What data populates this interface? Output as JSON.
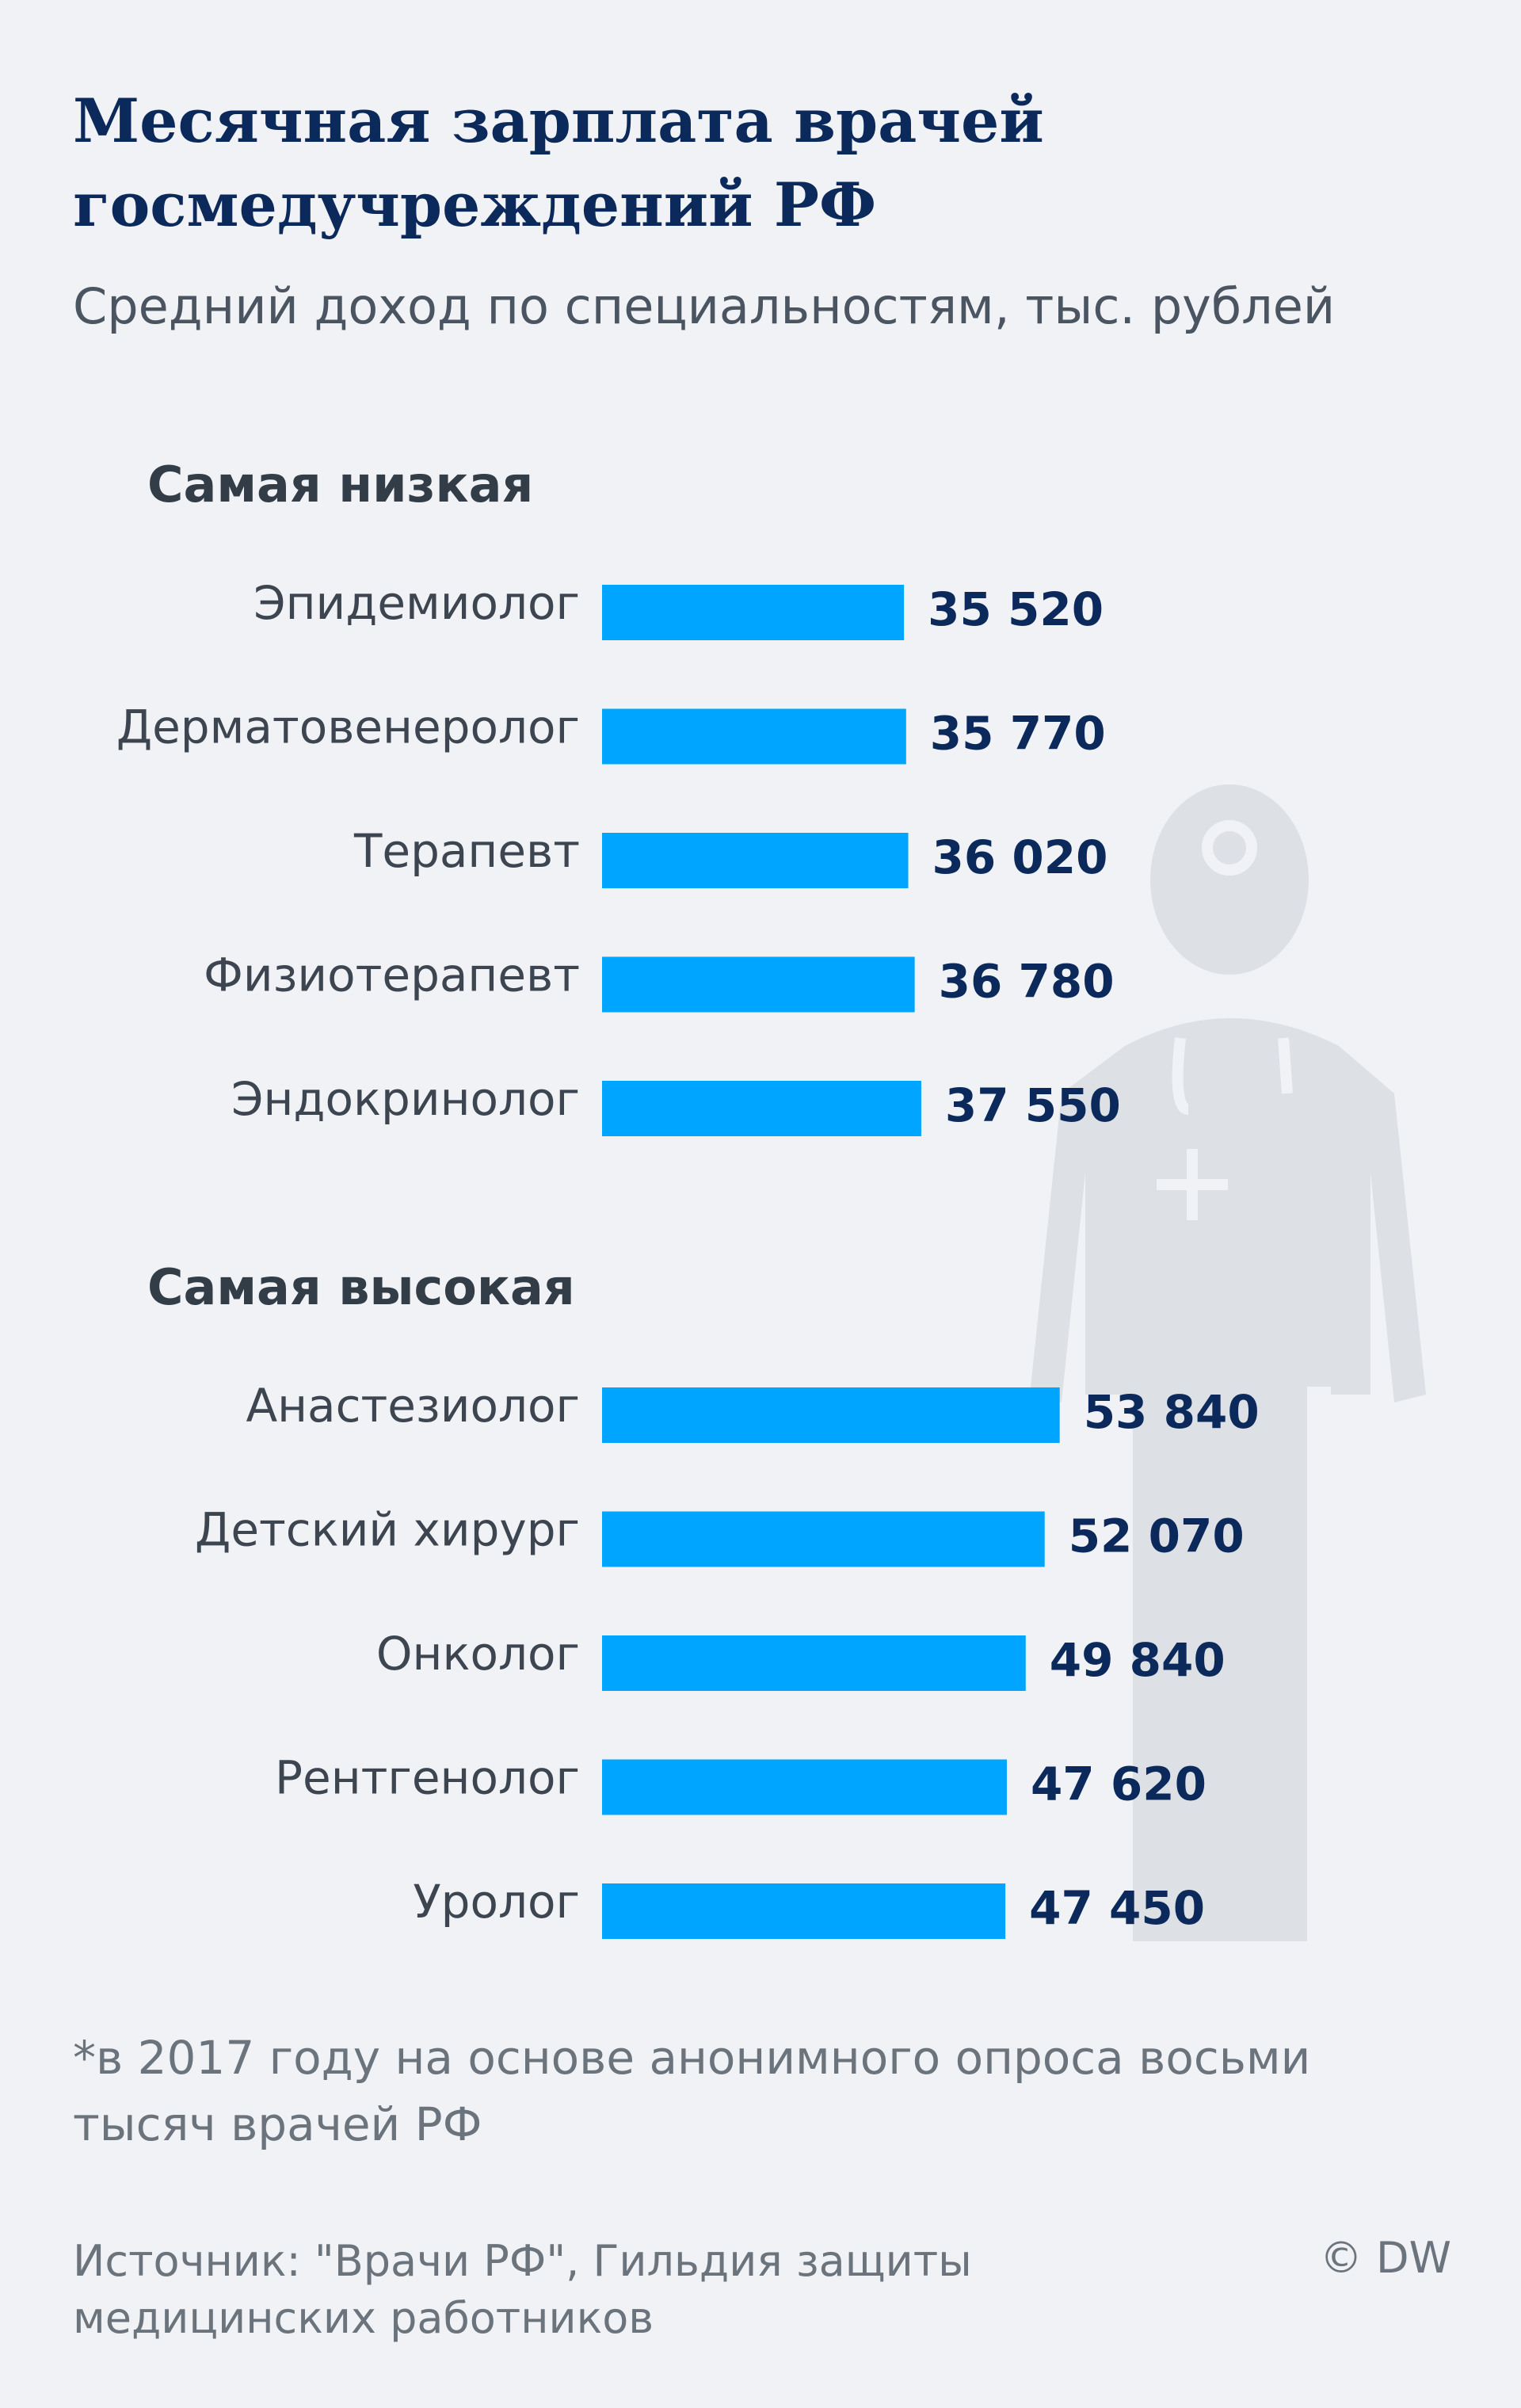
{
  "title": "Месячная зарплата врачей госмедучреждений РФ",
  "subtitle": "Средний доход по специальностям, тыс. рублей",
  "chart_data": [
    {
      "type": "bar",
      "title": "Самая низкая",
      "color": "#00a5ff",
      "categories": [
        "Эпидемиолог",
        "Дерматовенеролог",
        "Терапевт",
        "Физиотерапевт",
        "Эндокринолог"
      ],
      "values": [
        35520,
        35770,
        36020,
        36780,
        37550
      ],
      "value_labels": [
        "35 520",
        "35 770",
        "36 020",
        "36 780",
        "37 550"
      ]
    },
    {
      "type": "bar",
      "title": "Самая высокая",
      "color": "#00a5ff",
      "categories": [
        "Анастезиолог",
        "Детский хирург",
        "Онколог",
        "Рентгенолог",
        "Уролог"
      ],
      "values": [
        53840,
        52070,
        49840,
        47620,
        47450
      ],
      "value_labels": [
        "53 840",
        "52 070",
        "49 840",
        "47 620",
        "47 450"
      ]
    }
  ],
  "note": "*в 2017 году на основе анонимного опроса восьми тысяч врачей РФ",
  "source": "Источник: \"Врачи РФ\", Гильдия защиты медицинских работников",
  "credit": "© DW"
}
